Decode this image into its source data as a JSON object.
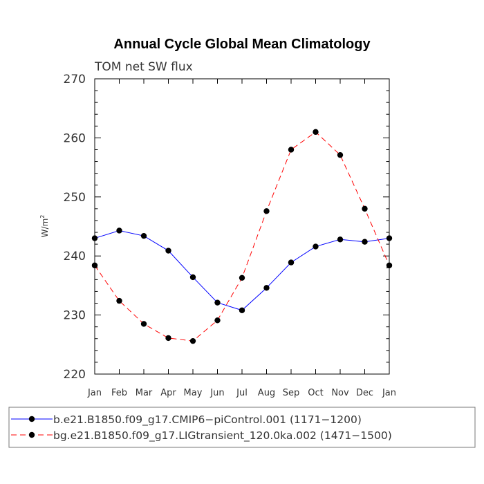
{
  "chart_data": {
    "type": "line",
    "title": "Annual Cycle Global Mean Climatology",
    "subtitle": "TOM net SW flux",
    "ylabel": "W/m",
    "ylabel_superscript": "2",
    "xlabel": "",
    "categories": [
      "Jan",
      "Feb",
      "Mar",
      "Apr",
      "May",
      "Jun",
      "Jul",
      "Aug",
      "Sep",
      "Oct",
      "Nov",
      "Dec",
      "Jan"
    ],
    "ylim": [
      220,
      270
    ],
    "yticks": [
      "220",
      "230",
      "240",
      "250",
      "260",
      "270"
    ],
    "grid": false,
    "legend_position": "bottom",
    "series": [
      {
        "name": "b.e21.B1850.f09_g17.CMIP6−piControl.001 (1171−1200)",
        "color": "#0000ff",
        "line_style": "solid",
        "marker": "filled-circle",
        "values": [
          243.0,
          244.3,
          243.4,
          240.9,
          236.4,
          232.1,
          230.8,
          234.6,
          238.9,
          241.6,
          242.8,
          242.4,
          243.0
        ]
      },
      {
        "name": "bg.e21.B1850.f09_g17.LIGtransient_120.0ka.002 (1471−1500)",
        "color": "#ff0000",
        "line_style": "dashed",
        "marker": "filled-circle",
        "values": [
          238.4,
          232.4,
          228.5,
          226.1,
          225.6,
          229.1,
          236.3,
          247.6,
          258.0,
          261.0,
          257.1,
          248.0,
          238.4
        ]
      }
    ]
  }
}
